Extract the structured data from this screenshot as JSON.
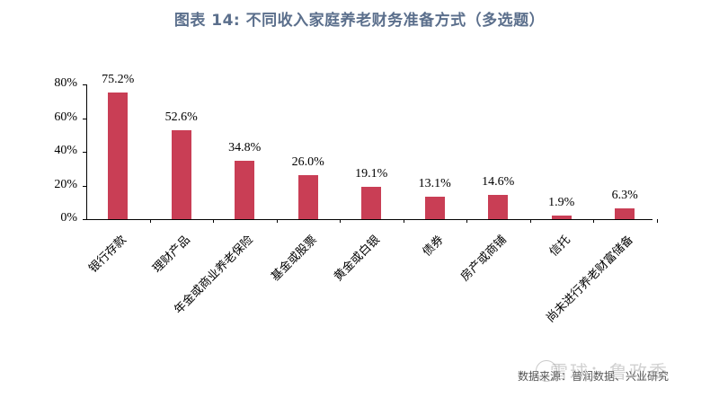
{
  "title": "图表 14: 不同收入家庭养老财务准备方式（多选题）",
  "source": "数据来源：普润数据、兴业研究",
  "watermark": "雪球：鲁政委",
  "colors": {
    "bar": "#c93e55",
    "title": "#5b6f8c"
  },
  "chart_data": {
    "type": "bar",
    "title": "图表 14: 不同收入家庭养老财务准备方式（多选题）",
    "categories": [
      "银行存款",
      "理财产品",
      "年金或商业养老保险",
      "基金或股票",
      "黄金或白银",
      "债券",
      "房产或商铺",
      "信托",
      "尚未进行养老财富储备"
    ],
    "values": [
      75.2,
      52.6,
      34.8,
      26.0,
      19.1,
      13.1,
      14.6,
      1.9,
      6.3
    ],
    "value_labels": [
      "75.2%",
      "52.6%",
      "34.8%",
      "26.0%",
      "19.1%",
      "13.1%",
      "14.6%",
      "1.9%",
      "6.3%"
    ],
    "xlabel": "",
    "ylabel": "",
    "ylim": [
      0,
      80
    ],
    "yticks": [
      "0%",
      "20%",
      "40%",
      "60%",
      "80%"
    ],
    "grid": false,
    "legend": "none"
  }
}
